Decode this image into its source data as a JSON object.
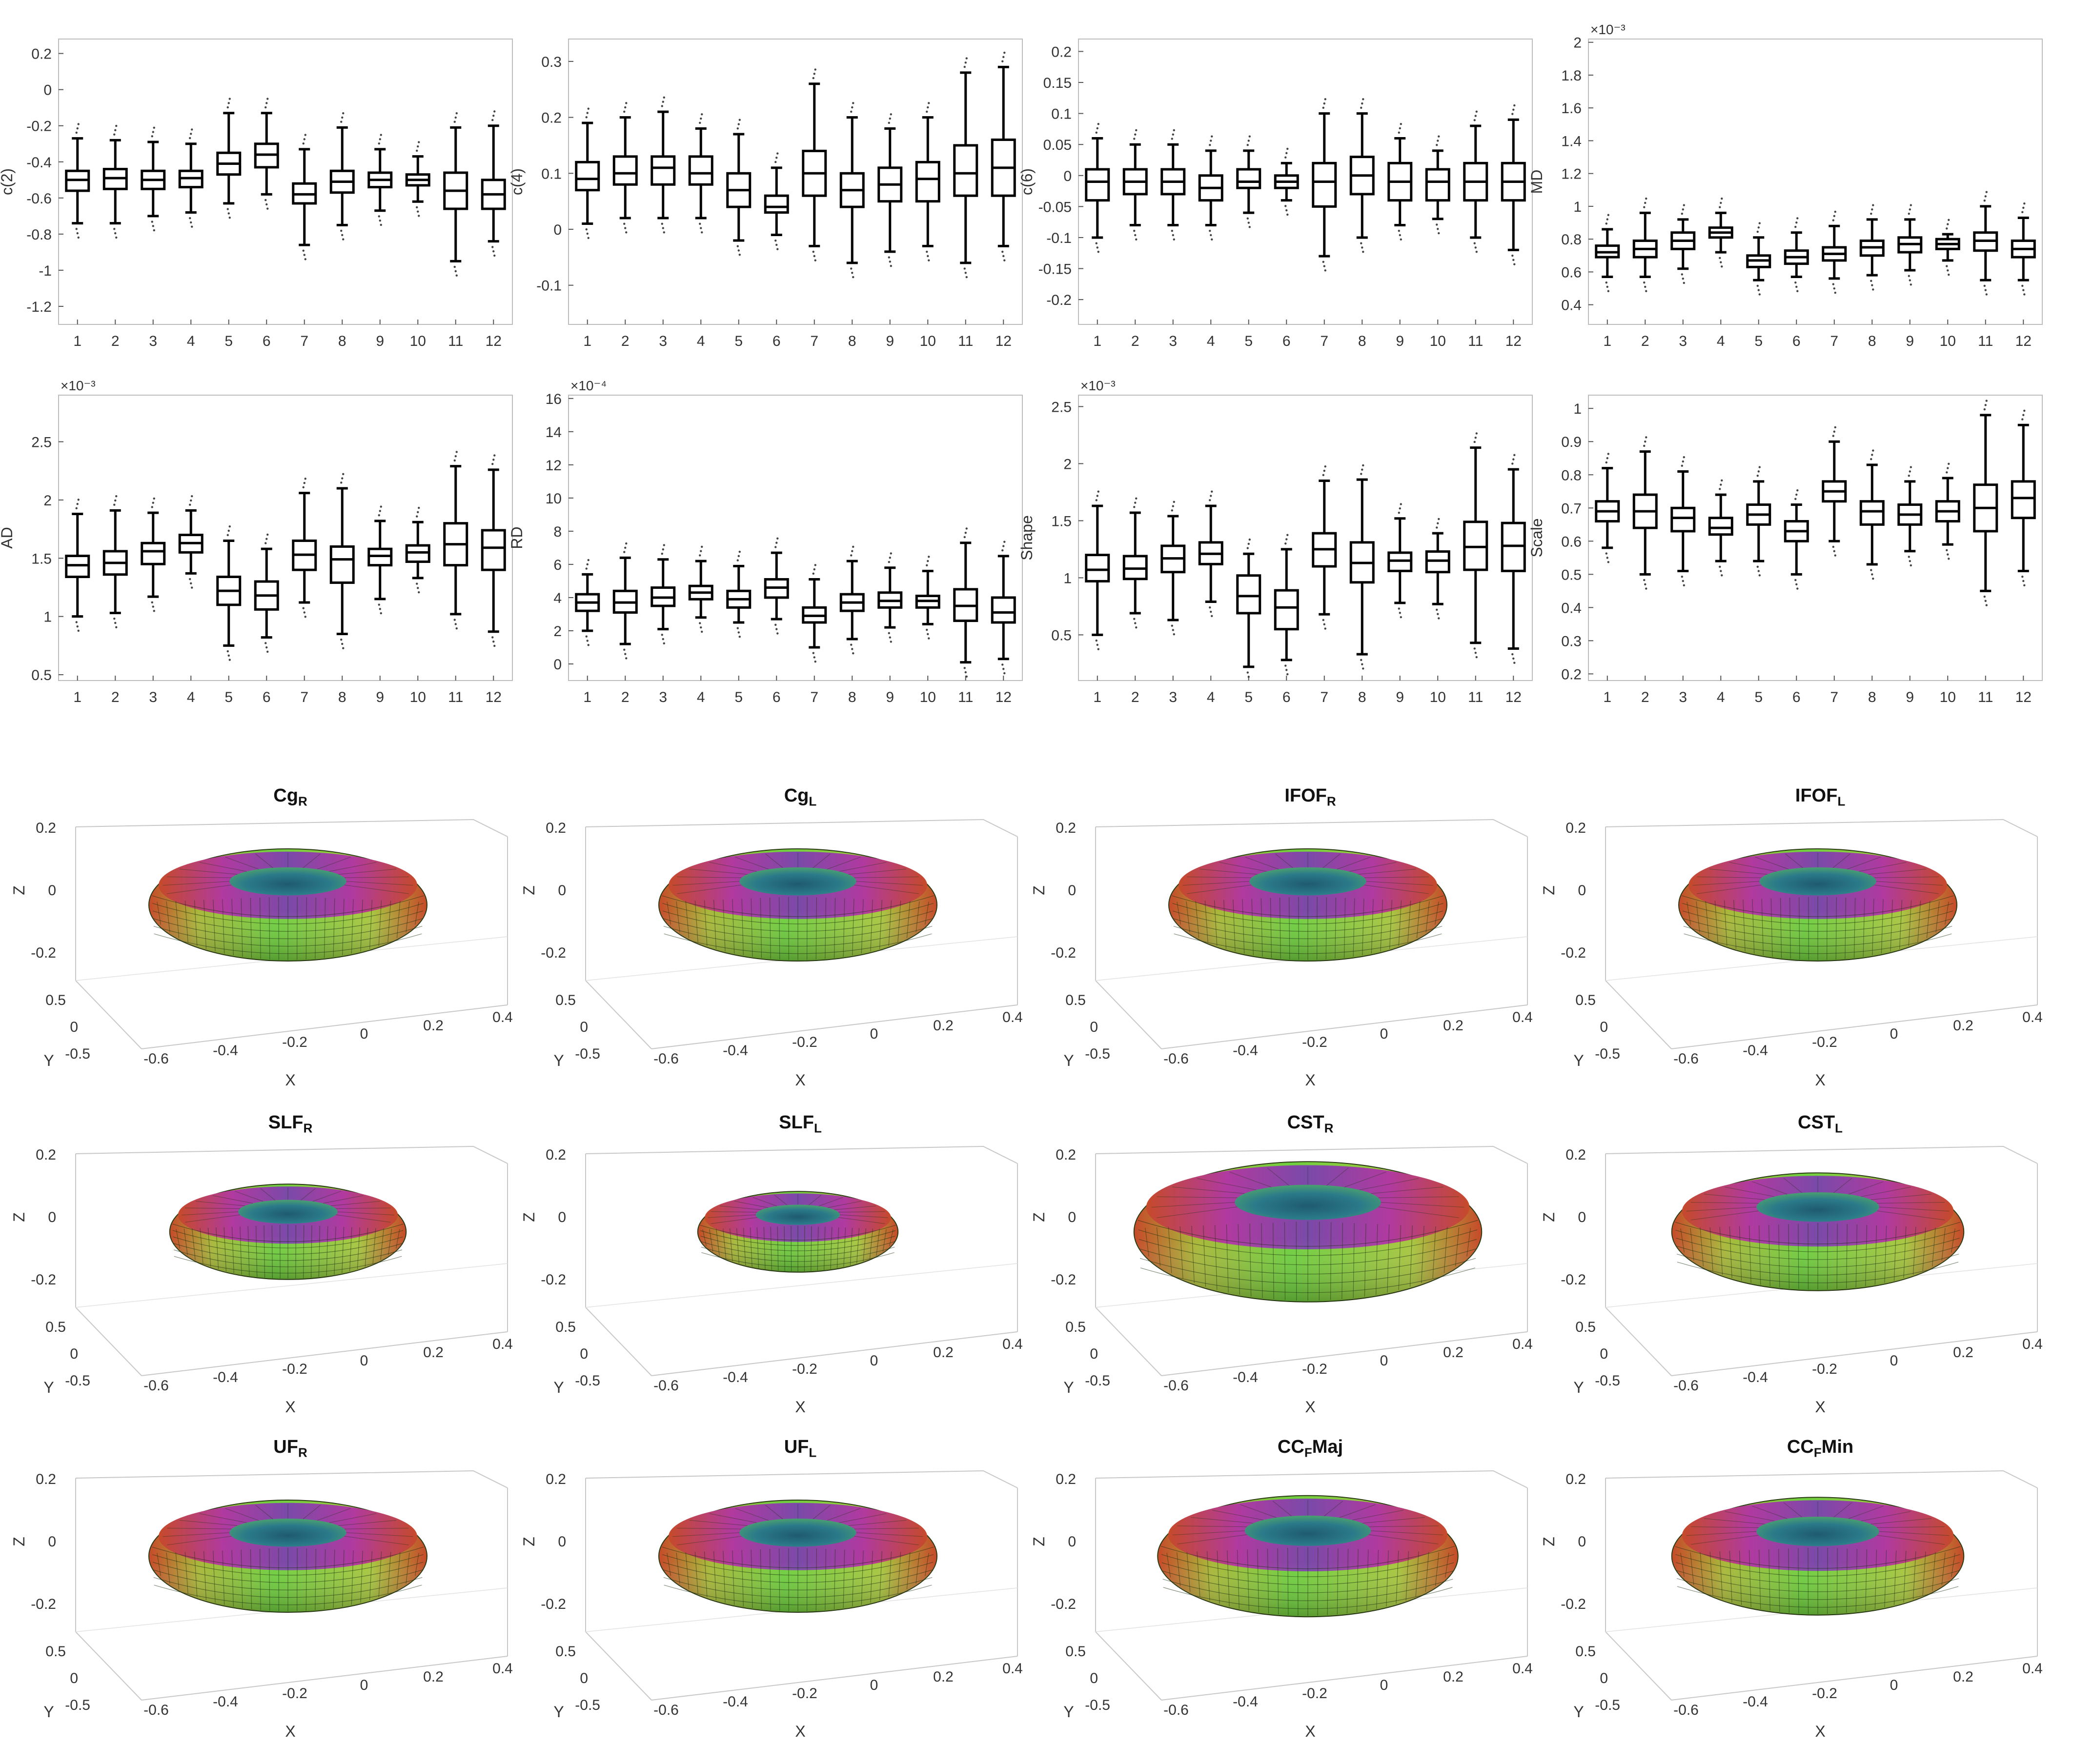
{
  "chart_data": [
    {
      "type": "box",
      "ylabel": "c(2)",
      "categories": [
        "1",
        "2",
        "3",
        "4",
        "5",
        "6",
        "7",
        "8",
        "9",
        "10",
        "11",
        "12"
      ],
      "ylim": [
        -1.3,
        0.28
      ],
      "yticks": [
        "0.2",
        "0",
        "-0.2",
        "-0.4",
        "-0.6",
        "-0.8",
        "-1",
        "-1.2"
      ],
      "ytick_values": [
        0.2,
        0,
        -0.2,
        -0.4,
        -0.6,
        -0.8,
        -1,
        -1.2
      ],
      "exponent": "",
      "median": [
        -0.5,
        -0.49,
        -0.5,
        -0.49,
        -0.41,
        -0.36,
        -0.58,
        -0.51,
        -0.5,
        -0.5,
        -0.56,
        -0.58
      ],
      "q1": [
        -0.56,
        -0.55,
        -0.55,
        -0.54,
        -0.47,
        -0.43,
        -0.63,
        -0.57,
        -0.54,
        -0.53,
        -0.66,
        -0.66
      ],
      "q3": [
        -0.45,
        -0.44,
        -0.45,
        -0.45,
        -0.35,
        -0.3,
        -0.52,
        -0.45,
        -0.46,
        -0.47,
        -0.46,
        -0.5
      ],
      "whisker_low": [
        -0.74,
        -0.74,
        -0.7,
        -0.68,
        -0.63,
        -0.58,
        -0.86,
        -0.75,
        -0.67,
        -0.62,
        -0.95,
        -0.84
      ],
      "whisker_high": [
        -0.27,
        -0.28,
        -0.29,
        -0.3,
        -0.13,
        -0.13,
        -0.33,
        -0.21,
        -0.33,
        -0.37,
        -0.21,
        -0.2
      ]
    },
    {
      "type": "box",
      "ylabel": "c(4)",
      "categories": [
        "1",
        "2",
        "3",
        "4",
        "5",
        "6",
        "7",
        "8",
        "9",
        "10",
        "11",
        "12"
      ],
      "ylim": [
        -0.17,
        0.34
      ],
      "yticks": [
        "0.3",
        "0.2",
        "0.1",
        "0",
        "-0.1"
      ],
      "ytick_values": [
        0.3,
        0.2,
        0.1,
        0,
        -0.1
      ],
      "exponent": "",
      "median": [
        0.09,
        0.1,
        0.11,
        0.1,
        0.07,
        0.04,
        0.1,
        0.07,
        0.08,
        0.09,
        0.1,
        0.11
      ],
      "q1": [
        0.07,
        0.08,
        0.08,
        0.08,
        0.04,
        0.03,
        0.06,
        0.04,
        0.05,
        0.05,
        0.06,
        0.06
      ],
      "q3": [
        0.12,
        0.13,
        0.13,
        0.13,
        0.1,
        0.06,
        0.14,
        0.1,
        0.11,
        0.12,
        0.15,
        0.16
      ],
      "whisker_low": [
        0.01,
        0.02,
        0.02,
        0.02,
        -0.02,
        -0.01,
        -0.03,
        -0.06,
        -0.04,
        -0.03,
        -0.06,
        -0.03
      ],
      "whisker_high": [
        0.19,
        0.2,
        0.21,
        0.18,
        0.17,
        0.11,
        0.26,
        0.2,
        0.18,
        0.2,
        0.28,
        0.29
      ]
    },
    {
      "type": "box",
      "ylabel": "c(6)",
      "categories": [
        "1",
        "2",
        "3",
        "4",
        "5",
        "6",
        "7",
        "8",
        "9",
        "10",
        "11",
        "12"
      ],
      "ylim": [
        -0.24,
        0.22
      ],
      "yticks": [
        "0.2",
        "0.15",
        "0.1",
        "0.05",
        "0",
        "-0.05",
        "-0.1",
        "-0.15",
        "-0.2"
      ],
      "ytick_values": [
        0.2,
        0.15,
        0.1,
        0.05,
        0,
        -0.05,
        -0.1,
        -0.15,
        -0.2
      ],
      "exponent": "",
      "median": [
        -0.01,
        -0.01,
        -0.01,
        -0.02,
        -0.01,
        -0.01,
        -0.01,
        0,
        -0.01,
        -0.01,
        -0.01,
        -0.01
      ],
      "q1": [
        -0.04,
        -0.03,
        -0.03,
        -0.04,
        -0.02,
        -0.02,
        -0.05,
        -0.03,
        -0.04,
        -0.04,
        -0.04,
        -0.04
      ],
      "q3": [
        0.01,
        0.01,
        0.01,
        0,
        0.01,
        0,
        0.02,
        0.03,
        0.02,
        0.01,
        0.02,
        0.02
      ],
      "whisker_low": [
        -0.1,
        -0.08,
        -0.08,
        -0.08,
        -0.06,
        -0.04,
        -0.13,
        -0.1,
        -0.08,
        -0.07,
        -0.1,
        -0.12
      ],
      "whisker_high": [
        0.06,
        0.05,
        0.05,
        0.04,
        0.04,
        0.02,
        0.1,
        0.1,
        0.06,
        0.04,
        0.08,
        0.09
      ]
    },
    {
      "type": "box",
      "ylabel": "MD",
      "categories": [
        "1",
        "2",
        "3",
        "4",
        "5",
        "6",
        "7",
        "8",
        "9",
        "10",
        "11",
        "12"
      ],
      "ylim": [
        0.28,
        2.02
      ],
      "yticks": [
        "2",
        "1.8",
        "1.6",
        "1.4",
        "1.2",
        "1",
        "0.8",
        "0.6",
        "0.4"
      ],
      "ytick_values": [
        2,
        1.8,
        1.6,
        1.4,
        1.2,
        1,
        0.8,
        0.6,
        0.4
      ],
      "exponent": "×10⁻³",
      "median": [
        0.72,
        0.74,
        0.79,
        0.84,
        0.67,
        0.69,
        0.71,
        0.75,
        0.77,
        0.77,
        0.79,
        0.74
      ],
      "q1": [
        0.69,
        0.69,
        0.74,
        0.81,
        0.63,
        0.65,
        0.67,
        0.7,
        0.72,
        0.74,
        0.73,
        0.69
      ],
      "q3": [
        0.76,
        0.79,
        0.84,
        0.87,
        0.7,
        0.73,
        0.75,
        0.79,
        0.81,
        0.8,
        0.84,
        0.79
      ],
      "whisker_low": [
        0.57,
        0.57,
        0.62,
        0.72,
        0.55,
        0.57,
        0.56,
        0.58,
        0.61,
        0.67,
        0.55,
        0.55
      ],
      "whisker_high": [
        0.86,
        0.96,
        0.92,
        0.96,
        0.81,
        0.84,
        0.88,
        0.92,
        0.92,
        0.83,
        1.0,
        0.93
      ]
    },
    {
      "type": "box",
      "ylabel": "AD",
      "categories": [
        "1",
        "2",
        "3",
        "4",
        "5",
        "6",
        "7",
        "8",
        "9",
        "10",
        "11",
        "12"
      ],
      "ylim": [
        0.45,
        2.9
      ],
      "yticks": [
        "2.5",
        "2",
        "1.5",
        "1",
        "0.5"
      ],
      "ytick_values": [
        2.5,
        2,
        1.5,
        1,
        0.5
      ],
      "exponent": "×10⁻³",
      "median": [
        1.44,
        1.46,
        1.56,
        1.63,
        1.22,
        1.18,
        1.53,
        1.49,
        1.52,
        1.55,
        1.62,
        1.59
      ],
      "q1": [
        1.34,
        1.36,
        1.45,
        1.55,
        1.1,
        1.06,
        1.4,
        1.29,
        1.44,
        1.47,
        1.44,
        1.4
      ],
      "q3": [
        1.52,
        1.56,
        1.63,
        1.7,
        1.34,
        1.3,
        1.65,
        1.6,
        1.58,
        1.61,
        1.8,
        1.74
      ],
      "whisker_low": [
        1.0,
        1.03,
        1.17,
        1.37,
        0.75,
        0.82,
        1.12,
        0.85,
        1.15,
        1.33,
        1.02,
        0.87
      ],
      "whisker_high": [
        1.88,
        1.91,
        1.89,
        1.91,
        1.65,
        1.58,
        2.06,
        2.1,
        1.82,
        1.81,
        2.29,
        2.26
      ]
    },
    {
      "type": "box",
      "ylabel": "RD",
      "categories": [
        "1",
        "2",
        "3",
        "4",
        "5",
        "6",
        "7",
        "8",
        "9",
        "10",
        "11",
        "12"
      ],
      "ylim": [
        -1.0,
        16.2
      ],
      "yticks": [
        "16",
        "14",
        "12",
        "10",
        "8",
        "6",
        "4",
        "2",
        "0"
      ],
      "ytick_values": [
        16,
        14,
        12,
        10,
        8,
        6,
        4,
        2,
        0
      ],
      "exponent": "×10⁻⁴",
      "median": [
        3.7,
        3.7,
        4.0,
        4.3,
        3.9,
        4.6,
        2.9,
        3.7,
        3.8,
        3.8,
        3.5,
        3.1
      ],
      "q1": [
        3.2,
        3.1,
        3.5,
        3.9,
        3.4,
        4.0,
        2.5,
        3.2,
        3.4,
        3.4,
        2.6,
        2.5
      ],
      "q3": [
        4.2,
        4.4,
        4.6,
        4.7,
        4.4,
        5.1,
        3.4,
        4.2,
        4.3,
        4.1,
        4.5,
        4.0
      ],
      "whisker_low": [
        2.0,
        1.2,
        2.1,
        2.8,
        2.5,
        2.7,
        1.0,
        1.5,
        2.2,
        2.4,
        0.1,
        0.3
      ],
      "whisker_high": [
        5.4,
        6.4,
        6.3,
        6.2,
        5.9,
        6.7,
        5.1,
        6.2,
        5.8,
        5.6,
        7.3,
        6.5
      ]
    },
    {
      "type": "box",
      "ylabel": "Shape",
      "categories": [
        "1",
        "2",
        "3",
        "4",
        "5",
        "6",
        "7",
        "8",
        "9",
        "10",
        "11",
        "12"
      ],
      "ylim": [
        0.1,
        2.6
      ],
      "yticks": [
        "2.5",
        "2",
        "1.5",
        "1",
        "0.5"
      ],
      "ytick_values": [
        2.5,
        2,
        1.5,
        1,
        0.5
      ],
      "exponent": "×10⁻³",
      "median": [
        1.07,
        1.08,
        1.17,
        1.21,
        0.84,
        0.74,
        1.25,
        1.13,
        1.15,
        1.15,
        1.27,
        1.28
      ],
      "q1": [
        0.97,
        0.99,
        1.05,
        1.12,
        0.69,
        0.55,
        1.1,
        0.96,
        1.06,
        1.05,
        1.07,
        1.06
      ],
      "q3": [
        1.2,
        1.19,
        1.28,
        1.31,
        1.02,
        0.89,
        1.39,
        1.31,
        1.22,
        1.23,
        1.49,
        1.48
      ],
      "whisker_low": [
        0.5,
        0.69,
        0.63,
        0.79,
        0.22,
        0.28,
        0.68,
        0.33,
        0.78,
        0.77,
        0.43,
        0.38
      ],
      "whisker_high": [
        1.63,
        1.57,
        1.54,
        1.63,
        1.21,
        1.25,
        1.85,
        1.86,
        1.52,
        1.39,
        2.14,
        1.95
      ]
    },
    {
      "type": "box",
      "ylabel": "Scale",
      "categories": [
        "1",
        "2",
        "3",
        "4",
        "5",
        "6",
        "7",
        "8",
        "9",
        "10",
        "11",
        "12"
      ],
      "ylim": [
        0.18,
        1.04
      ],
      "yticks": [
        "1",
        "0.9",
        "0.8",
        "0.7",
        "0.6",
        "0.5",
        "0.4",
        "0.3",
        "0.2"
      ],
      "ytick_values": [
        1,
        0.9,
        0.8,
        0.7,
        0.6,
        0.5,
        0.4,
        0.3,
        0.2
      ],
      "exponent": "",
      "median": [
        0.69,
        0.69,
        0.67,
        0.64,
        0.68,
        0.63,
        0.75,
        0.69,
        0.68,
        0.69,
        0.7,
        0.73
      ],
      "q1": [
        0.66,
        0.64,
        0.63,
        0.62,
        0.65,
        0.6,
        0.72,
        0.65,
        0.65,
        0.66,
        0.63,
        0.67
      ],
      "q3": [
        0.72,
        0.74,
        0.7,
        0.67,
        0.71,
        0.66,
        0.78,
        0.72,
        0.71,
        0.72,
        0.77,
        0.78
      ],
      "whisker_low": [
        0.58,
        0.5,
        0.51,
        0.54,
        0.54,
        0.5,
        0.6,
        0.53,
        0.57,
        0.59,
        0.45,
        0.51
      ],
      "whisker_high": [
        0.82,
        0.87,
        0.81,
        0.74,
        0.78,
        0.71,
        0.9,
        0.83,
        0.78,
        0.79,
        0.98,
        0.95
      ]
    }
  ],
  "surfaces": {
    "zlabel": "Z",
    "ylabel": "Y",
    "xlabel": "X",
    "zticks": [
      "0.2",
      "0",
      "-0.2"
    ],
    "yticks": [
      "0.5",
      "0",
      "-0.5"
    ],
    "xticks": [
      "-0.6",
      "-0.4",
      "-0.2",
      "0",
      "0.2",
      "0.4"
    ],
    "colors": {
      "body": "#6fcf3f",
      "top": "#b03aa0",
      "hole": "#2a7a8a",
      "rim": "#c64a2a",
      "grid": "#1a3010"
    },
    "panels": [
      {
        "base": "Cg",
        "sub": "R",
        "suffix": "",
        "radius_scale": 1.0
      },
      {
        "base": "Cg",
        "sub": "L",
        "suffix": "",
        "radius_scale": 1.0
      },
      {
        "base": "IFOF",
        "sub": "R",
        "suffix": "",
        "radius_scale": 1.0
      },
      {
        "base": "IFOF",
        "sub": "L",
        "suffix": "",
        "radius_scale": 1.0
      },
      {
        "base": "SLF",
        "sub": "R",
        "suffix": "",
        "radius_scale": 0.85
      },
      {
        "base": "SLF",
        "sub": "L",
        "suffix": "",
        "radius_scale": 0.72
      },
      {
        "base": "CST",
        "sub": "R",
        "suffix": "",
        "radius_scale": 1.25
      },
      {
        "base": "CST",
        "sub": "L",
        "suffix": "",
        "radius_scale": 1.05
      },
      {
        "base": "UF",
        "sub": "R",
        "suffix": "",
        "radius_scale": 1.0
      },
      {
        "base": "UF",
        "sub": "L",
        "suffix": "",
        "radius_scale": 1.0
      },
      {
        "base": "CC",
        "sub": "F",
        "suffix": "Maj",
        "radius_scale": 1.08
      },
      {
        "base": "CC",
        "sub": "F",
        "suffix": "Min",
        "radius_scale": 1.05
      }
    ]
  }
}
